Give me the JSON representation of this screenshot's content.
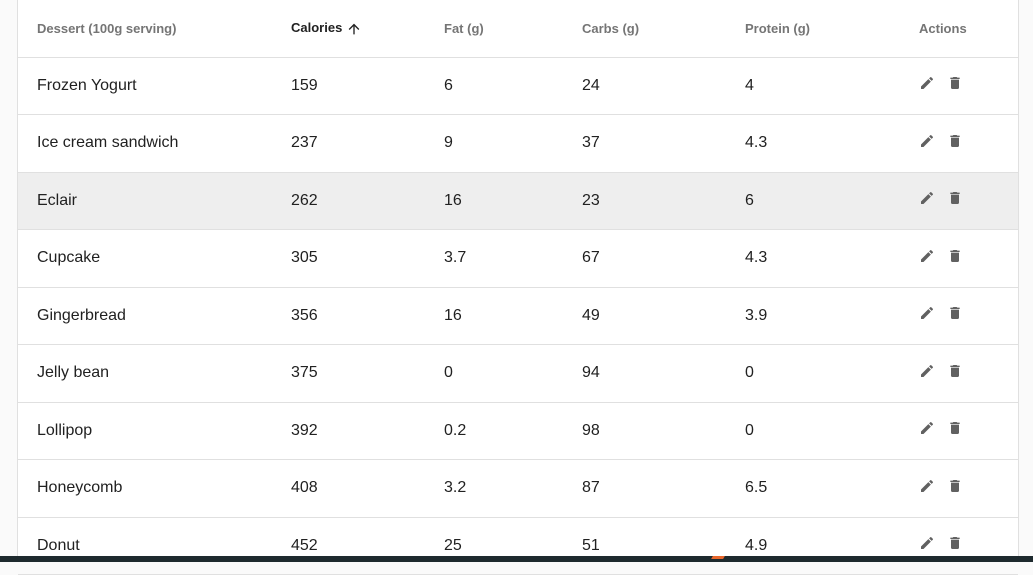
{
  "table": {
    "headers": [
      "Dessert (100g serving)",
      "Calories",
      "Fat (g)",
      "Carbs (g)",
      "Protein (g)",
      "Actions"
    ],
    "sort": {
      "column": "Calories",
      "direction": "ascending"
    },
    "highlighted_row": "Eclair",
    "rows": [
      [
        "Frozen Yogurt",
        "159",
        "6",
        "24",
        "4"
      ],
      [
        "Ice cream sandwich",
        "237",
        "9",
        "37",
        "4.3"
      ],
      [
        "Eclair",
        "262",
        "16",
        "23",
        "6"
      ],
      [
        "Cupcake",
        "305",
        "3.7",
        "67",
        "4.3"
      ],
      [
        "Gingerbread",
        "356",
        "16",
        "49",
        "3.9"
      ],
      [
        "Jelly bean",
        "375",
        "0",
        "94",
        "0"
      ],
      [
        "Lollipop",
        "392",
        "0.2",
        "98",
        "0"
      ],
      [
        "Honeycomb",
        "408",
        "3.2",
        "87",
        "6.5"
      ],
      [
        "Donut",
        "452",
        "25",
        "51",
        "4.9"
      ]
    ],
    "row_actions": [
      "edit-icon",
      "delete-icon"
    ]
  }
}
